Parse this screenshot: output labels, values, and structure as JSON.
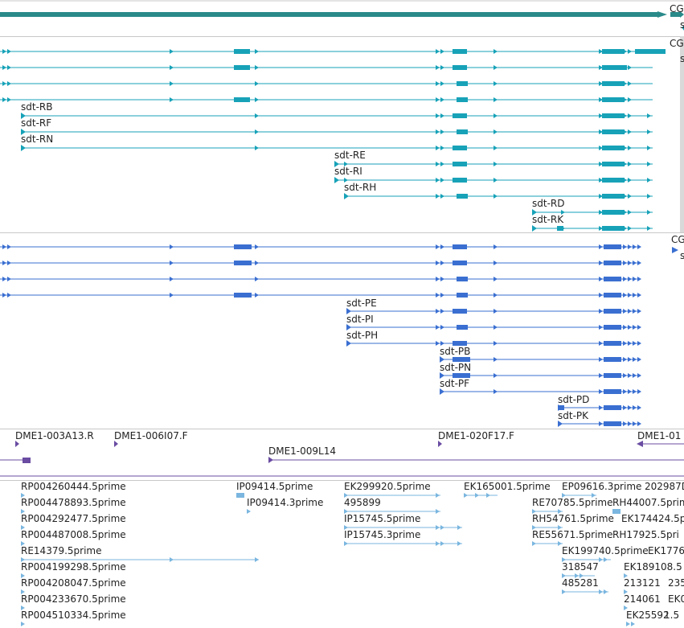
{
  "colors": {
    "gene": "#2a8a8a",
    "transcript": "#17a2b8",
    "protein": "#3a6fd1",
    "clone": "#6a4ca2",
    "est": "#7ab6df",
    "divider": "#c8c8c8"
  },
  "gene_track": {
    "labels": [
      "CG",
      "s"
    ]
  },
  "transcripts_track": {
    "labels": [
      "CG",
      "s",
      "sdt-RB",
      "sdt-RF",
      "sdt-RN",
      "sdt-RE",
      "sdt-RI",
      "sdt-RH",
      "sdt-RD",
      "sdt-RK"
    ]
  },
  "proteins_track": {
    "labels": [
      "CG",
      "s",
      "sdt-PE",
      "sdt-PI",
      "sdt-PH",
      "sdt-PB",
      "sdt-PN",
      "sdt-PF",
      "sdt-PD",
      "sdt-PK"
    ]
  },
  "clones_track": {
    "labels": [
      "DME1-003A13.R",
      "DME1-006I07.F",
      "DME1-020F17.F",
      "DME1-01",
      "DME1-009L14"
    ]
  },
  "ests_track": {
    "labels": [
      "RP004260444.5prime",
      "RP004478893.5prime",
      "RP004292477.5prime",
      "RP004487008.5prime",
      "RE14379.5prime",
      "RP004199298.5prime",
      "RP004208047.5prime",
      "RP004233670.5prime",
      "RP004510334.5prime",
      "IP09414.5prime",
      "IP09414.3prime",
      "EK299920.5prime",
      "495899",
      "IP15745.5prime",
      "IP15745.3prime",
      "EK165001.5prime",
      "EP09616.3prime",
      "202987D",
      "RE70785.5prime",
      "RH44007.5prim",
      "RH54761.5prime",
      "EK174424.5p",
      "RE55671.5prime",
      "RH17925.5pri",
      "EK199740.5prime",
      "EK1776",
      "318547",
      "EK189108.5",
      "485281",
      "213121",
      "235",
      "214061",
      "EK0",
      "EK25592",
      "1.5"
    ]
  }
}
